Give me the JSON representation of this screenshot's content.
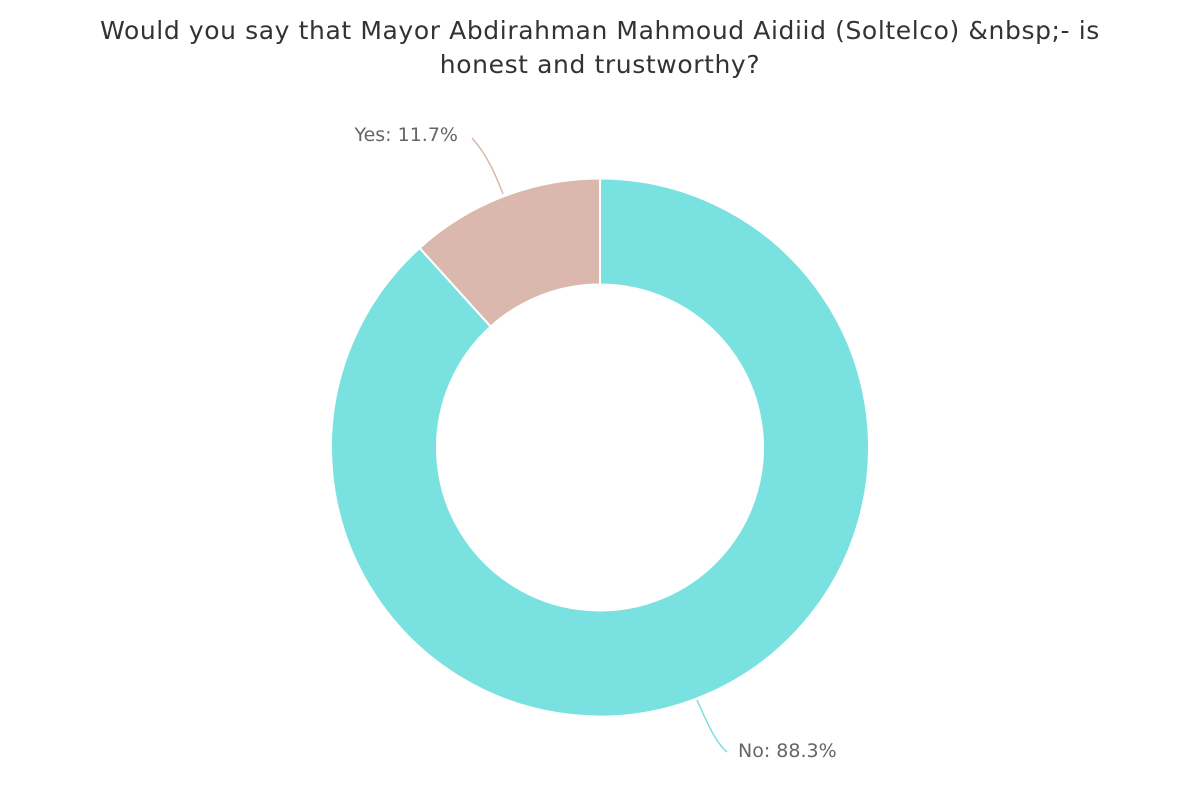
{
  "chart_data": {
    "type": "pie",
    "title": "Would you say that Mayor Abdirahman Mahmoud Aidiid (Soltelco) &nbsp;- is honest and trustworthy?",
    "donut": true,
    "slices": [
      {
        "label": "No",
        "value": 88.3,
        "display": "No: 88.3%",
        "color": "#7ae1e1"
      },
      {
        "label": "Yes",
        "value": 11.7,
        "display": "Yes: 11.7%",
        "color": "#dbb8ae"
      }
    ],
    "legend": "none"
  }
}
